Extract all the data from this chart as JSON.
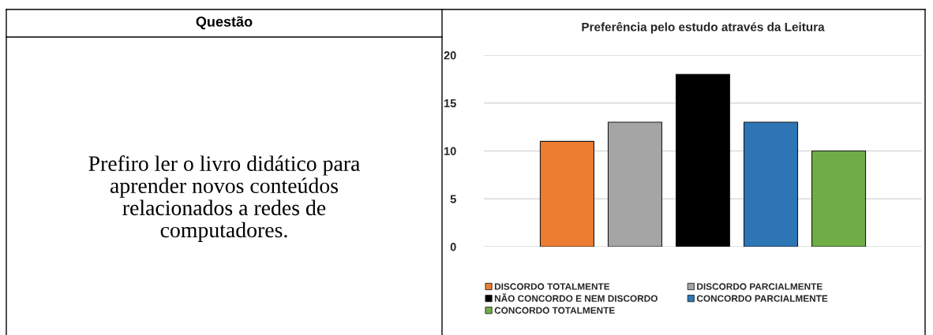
{
  "chart_data": [
    {
      "type": "other",
      "title": "Questão",
      "annotations": [
        "Prefiro ler o livro didático para\naprender novos conteúdos\nrelacionados a redes de\ncomputadores."
      ]
    },
    {
      "type": "bar",
      "title": "Preferência pelo estudo através da Leitura",
      "categories": [
        null
      ],
      "series": [
        {
          "name": "DISCORDO TOTALMENTE",
          "color": "#ed7d31",
          "values": [
            11
          ]
        },
        {
          "name": "DISCORDO PARCIALMENTE",
          "color": "#a5a5a5",
          "values": [
            13
          ]
        },
        {
          "name": "NÃO CONCORDO E NEM DISCORDO",
          "color": "#000000",
          "values": [
            18
          ]
        },
        {
          "name": "CONCORDO PARCIALMENTE",
          "color": "#2e75b6",
          "values": [
            13
          ]
        },
        {
          "name": "CONCORDO TOTALMENTE",
          "color": "#70ad47",
          "values": [
            10
          ]
        }
      ],
      "ylim": [
        0,
        20
      ],
      "yticks": [
        0,
        5,
        10,
        15,
        20
      ],
      "grid": "y",
      "legend": "bottom"
    }
  ]
}
